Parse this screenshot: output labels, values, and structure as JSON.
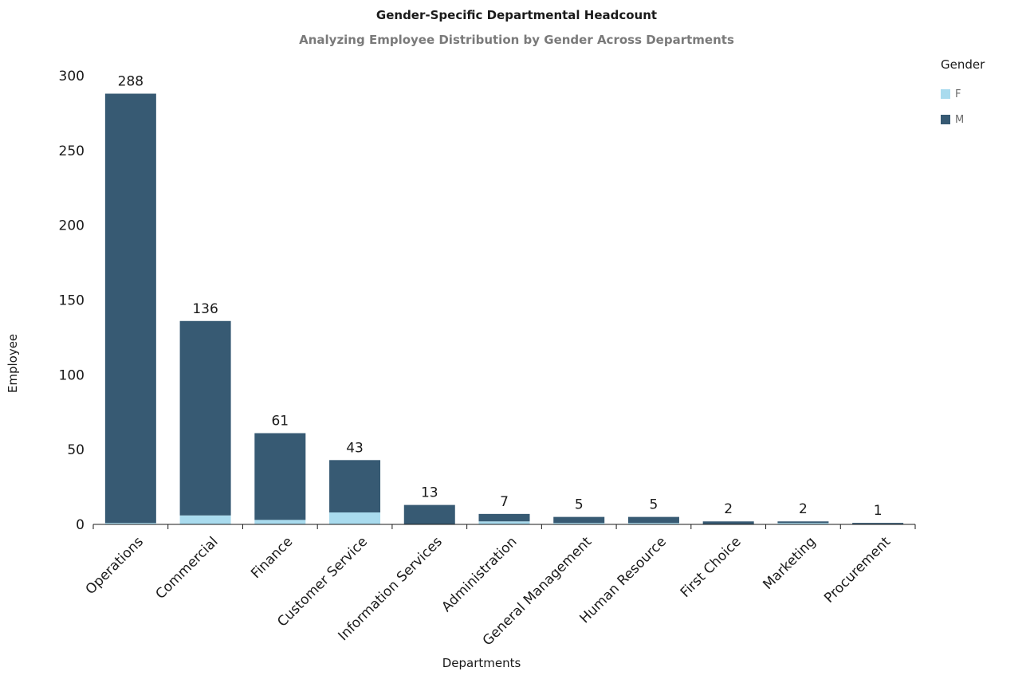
{
  "chart_data": {
    "type": "bar",
    "stacked": true,
    "title": "Gender-Specific Departmental Headcount",
    "subtitle": "Analyzing Employee Distribution by Gender Across Departments",
    "xlabel": "Departments",
    "ylabel": "Employee",
    "ylim": [
      0,
      300
    ],
    "yticks": [
      0,
      50,
      100,
      150,
      200,
      250,
      300
    ],
    "grid": false,
    "legend_title": "Gender",
    "legend_position": "top-right",
    "categories": [
      "Operations",
      "Commercial",
      "Finance",
      "Customer Service",
      "Information Services",
      "Administration",
      "General Management",
      "Human Resource",
      "First Choice",
      "Marketing",
      "Procurement"
    ],
    "series": [
      {
        "name": "F",
        "color": "#a9dbee",
        "values": [
          1,
          6,
          3,
          8,
          0,
          2,
          1,
          1,
          0,
          1,
          0
        ]
      },
      {
        "name": "M",
        "color": "#375a73",
        "values": [
          287,
          130,
          58,
          35,
          13,
          5,
          4,
          4,
          2,
          1,
          1
        ]
      }
    ],
    "totals": [
      288,
      136,
      61,
      43,
      13,
      7,
      5,
      5,
      2,
      2,
      1
    ]
  }
}
